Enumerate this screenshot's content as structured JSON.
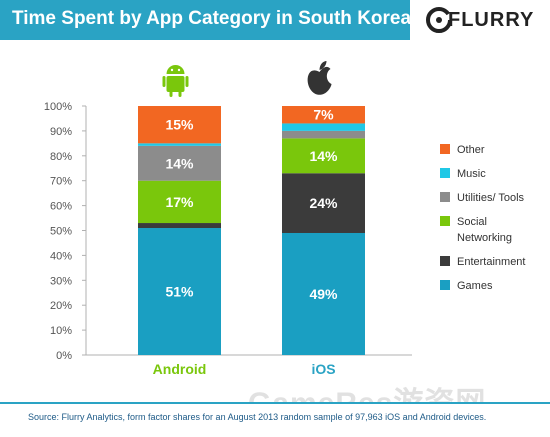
{
  "header": {
    "title": "Time Spent by App Category in South Korea",
    "logo": "FLURRY",
    "logo_icon": "flurry-logo-icon"
  },
  "chart_data": {
    "type": "bar",
    "stacked": true,
    "title": "Time Spent by App Category in South Korea",
    "categories": [
      "Android",
      "iOS"
    ],
    "category_icons": [
      "android-icon",
      "apple-icon"
    ],
    "ylim": [
      0,
      100
    ],
    "y_ticks": [
      "0%",
      "10%",
      "20%",
      "30%",
      "40%",
      "50%",
      "60%",
      "70%",
      "80%",
      "90%",
      "100%"
    ],
    "series": [
      {
        "name": "Games",
        "values": [
          51,
          49
        ],
        "color": "#1a9fc2",
        "labels": [
          "51%",
          "49%"
        ]
      },
      {
        "name": "Entertainment",
        "values": [
          2,
          24
        ],
        "color": "#3b3b3b",
        "labels": [
          "",
          "24%"
        ]
      },
      {
        "name": "Social Networking",
        "values": [
          17,
          14
        ],
        "color": "#7ac70c",
        "labels": [
          "17%",
          "14%"
        ]
      },
      {
        "name": "Utilities/ Tools",
        "values": [
          14,
          3
        ],
        "color": "#8c8c8c",
        "labels": [
          "14%",
          ""
        ]
      },
      {
        "name": "Music",
        "values": [
          1,
          3
        ],
        "color": "#20c8e6",
        "labels": [
          "",
          ""
        ]
      },
      {
        "name": "Other",
        "values": [
          15,
          7
        ],
        "color": "#f26722",
        "labels": [
          "15%",
          "7%"
        ]
      }
    ],
    "legend_order": [
      {
        "name": "Other",
        "lines": [
          "Other"
        ]
      },
      {
        "name": "Music",
        "lines": [
          "Music"
        ]
      },
      {
        "name": "Utilities/ Tools",
        "lines": [
          "Utilities/ Tools"
        ]
      },
      {
        "name": "Social Networking",
        "lines": [
          "Social",
          "Networking"
        ]
      },
      {
        "name": "Entertainment",
        "lines": [
          "Entertainment"
        ]
      },
      {
        "name": "Games",
        "lines": [
          "Games"
        ]
      }
    ],
    "legend_position": "right",
    "category_label_colors": [
      "#7ac70c",
      "#2aa3c4"
    ]
  },
  "footer": {
    "source": "Source: Flurry Analytics, form factor shares for an August 2013 random sample of 97,963 iOS and Android devices."
  },
  "watermark": "GameRes游资网"
}
